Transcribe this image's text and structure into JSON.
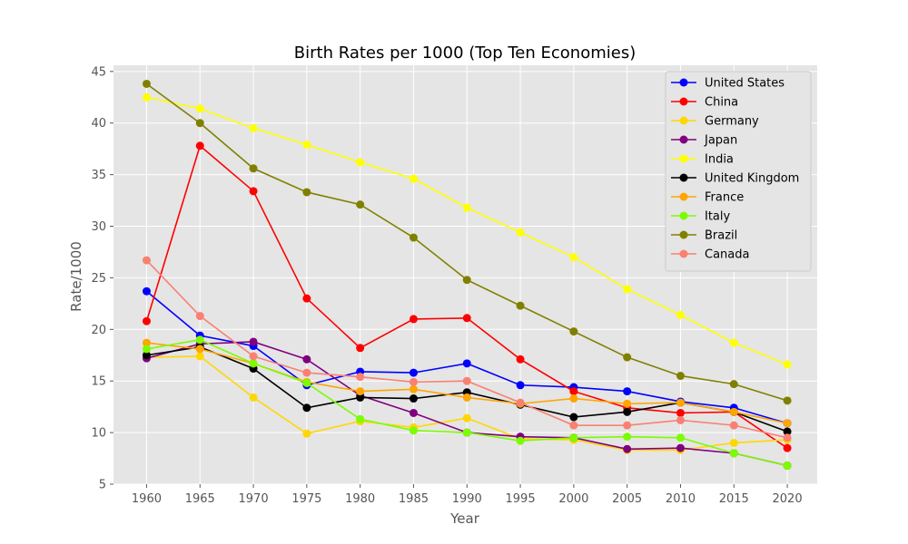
{
  "chart_data": {
    "type": "line",
    "title": "Birth Rates per 1000 (Top Ten Economies)",
    "xlabel": "Year",
    "ylabel": "Rate/1000",
    "x": [
      1960,
      1965,
      1970,
      1975,
      1980,
      1985,
      1990,
      1995,
      2000,
      2005,
      2010,
      2015,
      2020
    ],
    "xlim": [
      1956.9,
      2022.8
    ],
    "ylim": [
      5,
      45.6
    ],
    "yticks": [
      5,
      10,
      15,
      20,
      25,
      30,
      35,
      40,
      45
    ],
    "grid": true,
    "legend_position": "top-right",
    "background": "#e5e5e5",
    "series": [
      {
        "name": "United States",
        "color": "#0000ff",
        "values": [
          23.7,
          19.4,
          18.4,
          14.6,
          15.9,
          15.8,
          16.7,
          14.6,
          14.4,
          14.0,
          13.0,
          12.4,
          10.9
        ]
      },
      {
        "name": "China",
        "color": "#ff0000",
        "values": [
          20.8,
          37.8,
          33.4,
          23.0,
          18.2,
          21.0,
          21.1,
          17.1,
          14.0,
          12.4,
          11.9,
          12.0,
          8.5
        ]
      },
      {
        "name": "Germany",
        "color": "#ffd700",
        "values": [
          17.3,
          17.4,
          13.4,
          9.9,
          11.1,
          10.5,
          11.4,
          9.4,
          9.3,
          8.3,
          8.3,
          9.0,
          9.3
        ]
      },
      {
        "name": "Japan",
        "color": "#800080",
        "values": [
          17.2,
          18.6,
          18.8,
          17.1,
          13.6,
          11.9,
          10.0,
          9.6,
          9.5,
          8.4,
          8.5,
          8.0,
          6.8
        ]
      },
      {
        "name": "India",
        "color": "#ffff00",
        "values": [
          42.5,
          41.4,
          39.5,
          37.9,
          36.2,
          34.6,
          31.8,
          29.4,
          27.0,
          23.9,
          21.4,
          18.7,
          16.6
        ]
      },
      {
        "name": "United Kingdom",
        "color": "#000000",
        "values": [
          17.5,
          18.3,
          16.2,
          12.4,
          13.4,
          13.3,
          13.9,
          12.7,
          11.5,
          12.0,
          12.9,
          12.0,
          10.1
        ]
      },
      {
        "name": "France",
        "color": "#ffa500",
        "values": [
          18.7,
          18.1,
          16.7,
          14.9,
          14.0,
          14.2,
          13.4,
          12.8,
          13.3,
          12.8,
          12.9,
          12.0,
          10.9
        ]
      },
      {
        "name": "Italy",
        "color": "#7cfc00",
        "values": [
          18.1,
          19.0,
          16.7,
          14.8,
          11.3,
          10.2,
          10.0,
          9.2,
          9.5,
          9.6,
          9.5,
          8.0,
          6.8
        ]
      },
      {
        "name": "Brazil",
        "color": "#808000",
        "values": [
          43.8,
          40.0,
          35.6,
          33.3,
          32.1,
          28.9,
          24.8,
          22.3,
          19.8,
          17.3,
          15.5,
          14.7,
          13.1
        ]
      },
      {
        "name": "Canada",
        "color": "#fa8072",
        "values": [
          26.7,
          21.3,
          17.4,
          15.8,
          15.4,
          14.9,
          15.0,
          12.9,
          10.7,
          10.7,
          11.2,
          10.7,
          9.5
        ]
      }
    ]
  }
}
